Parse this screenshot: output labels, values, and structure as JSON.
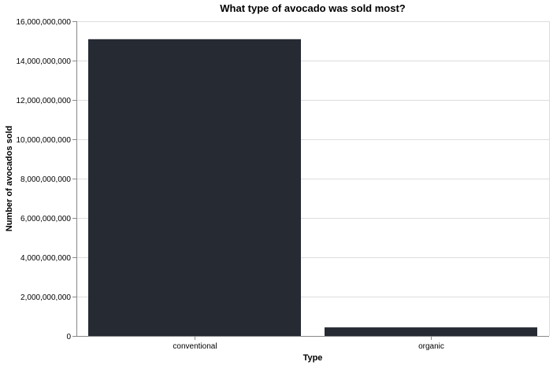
{
  "chart_data": {
    "type": "bar",
    "title": "What type of avocado was sold most?",
    "xlabel": "Type",
    "ylabel": "Number of avocados sold",
    "categories": [
      "conventional",
      "organic"
    ],
    "values": [
      15087220000,
      436181700
    ],
    "ylim": [
      0,
      16000000000
    ],
    "yticks": [
      0,
      2000000000,
      4000000000,
      6000000000,
      8000000000,
      10000000000,
      12000000000,
      14000000000,
      16000000000
    ],
    "ytick_labels": [
      "0",
      "2,000,000,000",
      "4,000,000,000",
      "6,000,000,000",
      "8,000,000,000",
      "10,000,000,000",
      "12,000,000,000",
      "14,000,000,000",
      "16,000,000,000"
    ],
    "grid": true,
    "legend": "none",
    "colors": {
      "bar": "#252a33",
      "grid": "#dddddd",
      "axis": "#888888"
    }
  }
}
